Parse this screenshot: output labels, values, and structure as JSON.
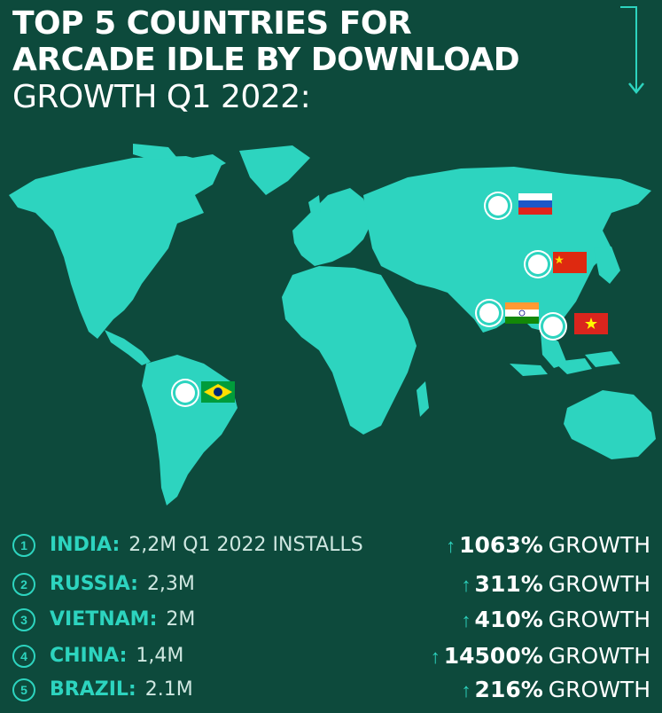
{
  "header": {
    "title_line1": "TOP 5 COUNTRIES FOR",
    "title_line2": "ARCADE IDLE BY DOWNLOAD",
    "title_line3": "GROWTH Q1 2022:"
  },
  "markers": [
    {
      "country": "Russia",
      "flag": "russia-flag"
    },
    {
      "country": "China",
      "flag": "china-flag"
    },
    {
      "country": "India",
      "flag": "india-flag"
    },
    {
      "country": "Vietnam",
      "flag": "vietnam-flag"
    },
    {
      "country": "Brazil",
      "flag": "brazil-flag"
    }
  ],
  "ranking": [
    {
      "rank": "1",
      "country": "INDIA:",
      "installs": "2,2M  Q1 2022 INSTALLS",
      "arrow": "↑",
      "growth": "1063%",
      "growth_word": "GROWTH"
    },
    {
      "rank": "2",
      "country": "RUSSIA:",
      "installs": "2,3M",
      "arrow": "↑",
      "growth": "311%",
      "growth_word": "GROWTH"
    },
    {
      "rank": "3",
      "country": "VIETNAM:",
      "installs": "2M",
      "arrow": "↑",
      "growth": "410%",
      "growth_word": "GROWTH"
    },
    {
      "rank": "4",
      "country": "CHINA:",
      "installs": "1,4M",
      "arrow": "↑",
      "growth": "14500%",
      "growth_word": "GROWTH"
    },
    {
      "rank": "5",
      "country": "BRAZIL:",
      "installs": "2.1M",
      "arrow": "↑",
      "growth": "216%",
      "growth_word": "GROWTH"
    }
  ],
  "colors": {
    "background": "#0d4a3c",
    "accent": "#2dd4bf",
    "land": "#2dd4bf"
  }
}
